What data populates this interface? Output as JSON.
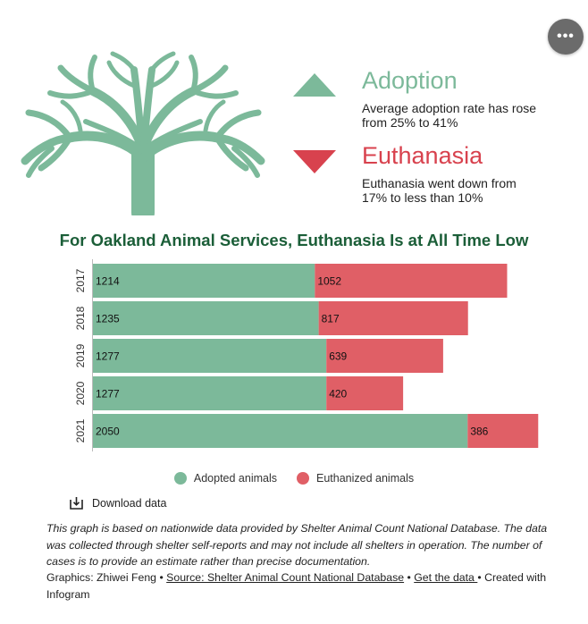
{
  "menu": {
    "more_label": "•••",
    "more_icon": "more-dots-icon"
  },
  "stats": {
    "adoption": {
      "title": "Adoption",
      "description": "Average adoption rate has rose from 25% to 41%",
      "color": "#7cb99a"
    },
    "euthanasia": {
      "title": "Euthanasia",
      "description": "Euthanasia went down from 17% to less than 10%",
      "color": "#d8424e"
    }
  },
  "chart_data": {
    "type": "bar",
    "orientation": "horizontal",
    "stacked": true,
    "title": "For Oakland Animal Services, Euthanasia Is at All Time Low",
    "categories": [
      "2017",
      "2018",
      "2019",
      "2020",
      "2021"
    ],
    "series": [
      {
        "name": "Adopted animals",
        "color": "#7cb99a",
        "values": [
          1214,
          1235,
          1277,
          1277,
          2050
        ]
      },
      {
        "name": "Euthanized animals",
        "color": "#e05f66",
        "values": [
          1052,
          817,
          639,
          420,
          386
        ]
      }
    ],
    "xlim": [
      0,
      2640
    ],
    "grid": false,
    "legend": "bottom"
  },
  "download": {
    "label": "Download data",
    "icon": "download-icon"
  },
  "note": "This graph is based on nationwide data provided by Shelter Animal Count National Database. The data was collected through shelter self-reports and may not include all shelters in operation. The number of cases is to provide an estimate rather than precise documentation.",
  "credits": {
    "graphics": "Graphics: Zhiwei Feng",
    "separator": " • ",
    "source": "Source: Shelter Animal Count National Database",
    "get_data": " Get the data ",
    "created_with": "Created with Infogram"
  }
}
